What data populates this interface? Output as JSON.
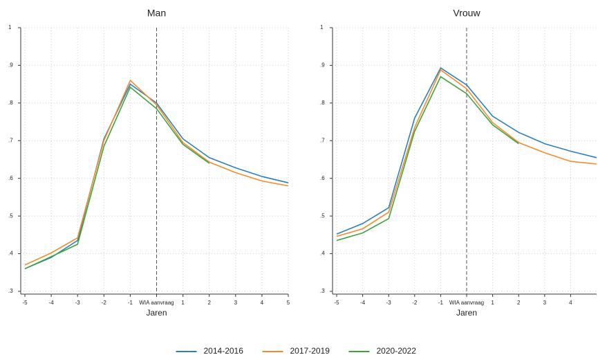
{
  "chart_data": [
    {
      "type": "line",
      "title": "Man",
      "x_label": "Jaren",
      "x": [
        -5,
        -4,
        -3,
        -2,
        -1,
        0,
        1,
        2,
        3,
        4,
        5
      ],
      "xlim": [
        -5,
        5
      ],
      "xticks": [
        -5,
        -4,
        -3,
        -2,
        -1,
        {
          "value": 0,
          "label": "WIA aanvraag"
        },
        1,
        2,
        3,
        4,
        5
      ],
      "ylim": [
        0.3,
        1
      ],
      "yticks": [
        {
          "value": 0.3,
          "label": ".3"
        },
        {
          "value": 0.4,
          "label": ".4"
        },
        {
          "value": 0.5,
          "label": ".5"
        },
        {
          "value": 0.6,
          "label": ".6"
        },
        {
          "value": 0.7,
          "label": ".7"
        },
        {
          "value": 0.8,
          "label": ".8"
        },
        {
          "value": 0.9,
          "label": ".9"
        },
        1
      ],
      "grid": true,
      "vline": 0,
      "series": [
        {
          "name": "2014-2016",
          "color": "#2e7fb8",
          "values": [
            0.36,
            0.39,
            0.435,
            0.705,
            0.85,
            0.8,
            0.705,
            0.655,
            0.628,
            0.605,
            0.588
          ]
        },
        {
          "name": "2017-2019",
          "color": "#f58a2a",
          "values": [
            0.37,
            0.402,
            0.442,
            0.7,
            0.86,
            0.795,
            0.695,
            0.643,
            0.615,
            0.593,
            0.58
          ]
        },
        {
          "name": "2020-2022",
          "color": "#3ca33c",
          "values": [
            0.36,
            0.392,
            0.425,
            0.685,
            0.842,
            0.785,
            0.69,
            0.64,
            null,
            null,
            null
          ]
        }
      ]
    },
    {
      "type": "line",
      "title": "Vrouw",
      "x_label": "Jaren",
      "x": [
        -5,
        -4,
        -3,
        -2,
        -1,
        0,
        1,
        2,
        3,
        4,
        5
      ],
      "xlim": [
        -5,
        5
      ],
      "xticks": [
        -5,
        -4,
        -3,
        -2,
        -1,
        {
          "value": 0,
          "label": "WIA aanvraag"
        },
        1,
        2,
        3,
        4
      ],
      "ylim": [
        0.3,
        1
      ],
      "yticks": [
        {
          "value": 0.3,
          "label": ".3"
        },
        {
          "value": 0.4,
          "label": ".4"
        },
        {
          "value": 0.5,
          "label": ".5"
        },
        {
          "value": 0.6,
          "label": ".6"
        },
        {
          "value": 0.7,
          "label": ".7"
        },
        {
          "value": 0.8,
          "label": ".8"
        },
        {
          "value": 0.9,
          "label": ".9"
        },
        1
      ],
      "grid": true,
      "vline": 0,
      "series": [
        {
          "name": "2014-2016",
          "color": "#2e7fb8",
          "values": [
            0.452,
            0.48,
            0.522,
            0.76,
            0.893,
            0.848,
            0.765,
            0.722,
            0.692,
            0.672,
            0.655
          ]
        },
        {
          "name": "2017-2019",
          "color": "#f58a2a",
          "values": [
            0.446,
            0.466,
            0.51,
            0.735,
            0.888,
            0.838,
            0.748,
            0.695,
            0.668,
            0.645,
            0.638
          ]
        },
        {
          "name": "2020-2022",
          "color": "#3ca33c",
          "values": [
            0.435,
            0.455,
            0.493,
            0.725,
            0.87,
            0.825,
            0.742,
            0.692,
            null,
            null,
            null
          ]
        }
      ]
    }
  ]
}
